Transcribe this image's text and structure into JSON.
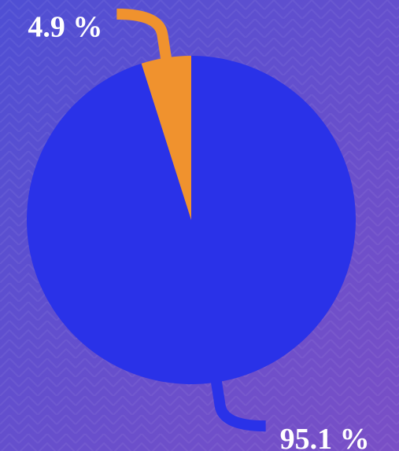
{
  "chart_data": {
    "type": "pie",
    "values": [
      95.1,
      4.9
    ],
    "value_labels": [
      "95.1 %",
      "4.9 %"
    ],
    "colors": [
      "#2a32e8",
      "#f0922e"
    ]
  }
}
